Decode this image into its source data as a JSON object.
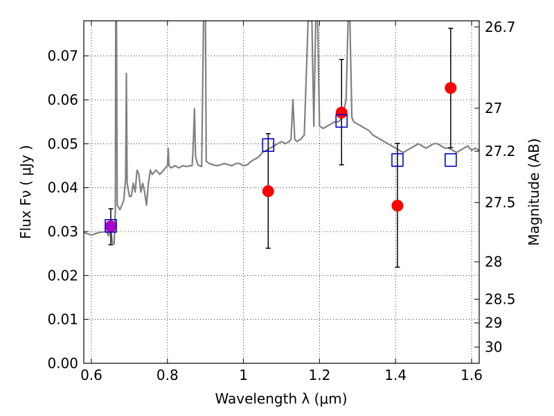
{
  "chart_data": {
    "type": "scatter",
    "title": "",
    "xlabel": "Wavelength  λ (μm)",
    "ylabel": "Flux  Fν  ( μJy )",
    "y2label": "Magnitude (AB)",
    "xlim": [
      0.58,
      1.62
    ],
    "ylim": [
      0.0,
      0.078
    ],
    "grid": true,
    "xticks": [
      0.6,
      0.8,
      1.0,
      1.2,
      1.4,
      1.6
    ],
    "xtick_labels": [
      "0.6",
      "0.8",
      "1",
      "1.2",
      "1.4",
      "1.6"
    ],
    "yticks": [
      0.0,
      0.01,
      0.02,
      0.03,
      0.04,
      0.05,
      0.06,
      0.07
    ],
    "ytick_labels": [
      "0.00",
      "0.01",
      "0.02",
      "0.03",
      "0.04",
      "0.05",
      "0.06",
      "0.07"
    ],
    "y2ticks": [
      {
        "label": "26.7",
        "flux": 0.0766
      },
      {
        "label": "27",
        "flux": 0.0581
      },
      {
        "label": "27.2",
        "flux": 0.0483
      },
      {
        "label": "27.5",
        "flux": 0.0366
      },
      {
        "label": "28",
        "flux": 0.0231
      },
      {
        "label": "28.5",
        "flux": 0.0146
      },
      {
        "label": "29",
        "flux": 0.0092
      },
      {
        "label": "30",
        "flux": 0.0037
      }
    ],
    "series": [
      {
        "kind": "model_spectrum",
        "color": "#808080",
        "points": [
          [
            0.58,
            0.0298
          ],
          [
            0.6,
            0.0292
          ],
          [
            0.62,
            0.0298
          ],
          [
            0.64,
            0.03
          ],
          [
            0.645,
            0.029
          ],
          [
            0.648,
            0.03
          ],
          [
            0.652,
            0.03
          ],
          [
            0.655,
            0.0275
          ],
          [
            0.66,
            0.0272
          ],
          [
            0.663,
            0.035
          ],
          [
            0.664,
            0.078
          ],
          [
            0.666,
            0.078
          ],
          [
            0.668,
            0.036
          ],
          [
            0.675,
            0.035
          ],
          [
            0.68,
            0.036
          ],
          [
            0.685,
            0.037
          ],
          [
            0.69,
            0.042
          ],
          [
            0.692,
            0.066
          ],
          [
            0.694,
            0.041
          ],
          [
            0.7,
            0.038
          ],
          [
            0.705,
            0.038
          ],
          [
            0.71,
            0.041
          ],
          [
            0.715,
            0.039
          ],
          [
            0.72,
            0.044
          ],
          [
            0.725,
            0.043
          ],
          [
            0.73,
            0.039
          ],
          [
            0.735,
            0.041
          ],
          [
            0.74,
            0.039
          ],
          [
            0.745,
            0.036
          ],
          [
            0.75,
            0.041
          ],
          [
            0.755,
            0.044
          ],
          [
            0.76,
            0.043
          ],
          [
            0.77,
            0.044
          ],
          [
            0.78,
            0.043
          ],
          [
            0.785,
            0.0435
          ],
          [
            0.79,
            0.044
          ],
          [
            0.8,
            0.045
          ],
          [
            0.802,
            0.049
          ],
          [
            0.804,
            0.045
          ],
          [
            0.81,
            0.0445
          ],
          [
            0.82,
            0.045
          ],
          [
            0.83,
            0.0445
          ],
          [
            0.84,
            0.045
          ],
          [
            0.85,
            0.0448
          ],
          [
            0.86,
            0.045
          ],
          [
            0.865,
            0.045
          ],
          [
            0.868,
            0.05
          ],
          [
            0.871,
            0.058
          ],
          [
            0.874,
            0.047
          ],
          [
            0.88,
            0.0452
          ],
          [
            0.89,
            0.0448
          ],
          [
            0.895,
            0.078
          ],
          [
            0.9,
            0.078
          ],
          [
            0.902,
            0.046
          ],
          [
            0.91,
            0.0455
          ],
          [
            0.92,
            0.0452
          ],
          [
            0.93,
            0.045
          ],
          [
            0.94,
            0.0452
          ],
          [
            0.95,
            0.0455
          ],
          [
            0.96,
            0.0452
          ],
          [
            0.97,
            0.045
          ],
          [
            0.98,
            0.0455
          ],
          [
            0.99,
            0.0455
          ],
          [
            1.0,
            0.045
          ],
          [
            1.01,
            0.0452
          ],
          [
            1.02,
            0.046
          ],
          [
            1.03,
            0.0465
          ],
          [
            1.04,
            0.047
          ],
          [
            1.05,
            0.048
          ],
          [
            1.06,
            0.0485
          ],
          [
            1.07,
            0.049
          ],
          [
            1.08,
            0.0495
          ],
          [
            1.09,
            0.05
          ],
          [
            1.1,
            0.0505
          ],
          [
            1.11,
            0.05
          ],
          [
            1.12,
            0.0505
          ],
          [
            1.125,
            0.051
          ],
          [
            1.13,
            0.06
          ],
          [
            1.135,
            0.051
          ],
          [
            1.14,
            0.0505
          ],
          [
            1.15,
            0.051
          ],
          [
            1.16,
            0.052
          ],
          [
            1.17,
            0.078
          ],
          [
            1.18,
            0.078
          ],
          [
            1.185,
            0.054
          ],
          [
            1.19,
            0.078
          ],
          [
            1.195,
            0.078
          ],
          [
            1.2,
            0.054
          ],
          [
            1.21,
            0.0535
          ],
          [
            1.22,
            0.054
          ],
          [
            1.23,
            0.0545
          ],
          [
            1.24,
            0.055
          ],
          [
            1.25,
            0.055
          ],
          [
            1.26,
            0.056
          ],
          [
            1.27,
            0.06
          ],
          [
            1.275,
            0.078
          ],
          [
            1.28,
            0.078
          ],
          [
            1.285,
            0.056
          ],
          [
            1.29,
            0.055
          ],
          [
            1.3,
            0.0545
          ],
          [
            1.31,
            0.054
          ],
          [
            1.32,
            0.0535
          ],
          [
            1.33,
            0.053
          ],
          [
            1.34,
            0.052
          ],
          [
            1.35,
            0.0515
          ],
          [
            1.36,
            0.051
          ],
          [
            1.37,
            0.0505
          ],
          [
            1.38,
            0.05
          ],
          [
            1.39,
            0.0495
          ],
          [
            1.4,
            0.049
          ],
          [
            1.41,
            0.0485
          ],
          [
            1.42,
            0.048
          ],
          [
            1.43,
            0.0485
          ],
          [
            1.44,
            0.049
          ],
          [
            1.45,
            0.0495
          ],
          [
            1.46,
            0.05
          ],
          [
            1.47,
            0.0495
          ],
          [
            1.48,
            0.049
          ],
          [
            1.49,
            0.0495
          ],
          [
            1.5,
            0.05
          ],
          [
            1.51,
            0.05
          ],
          [
            1.52,
            0.0495
          ],
          [
            1.53,
            0.049
          ],
          [
            1.54,
            0.049
          ],
          [
            1.55,
            0.0485
          ],
          [
            1.56,
            0.048
          ],
          [
            1.57,
            0.0485
          ],
          [
            1.58,
            0.049
          ],
          [
            1.59,
            0.0495
          ],
          [
            1.6,
            0.0485
          ],
          [
            1.61,
            0.049
          ],
          [
            1.62,
            0.0485
          ]
        ]
      },
      {
        "kind": "observed_photometry",
        "marker": "circle",
        "color": "#ff0000",
        "points": [
          {
            "x": 0.651,
            "y": 0.0312,
            "ylo": 0.027,
            "yhi": 0.0352
          },
          {
            "x": 1.065,
            "y": 0.0392,
            "ylo": 0.0262,
            "yhi": 0.0523
          },
          {
            "x": 1.258,
            "y": 0.0571,
            "ylo": 0.0452,
            "yhi": 0.0692
          },
          {
            "x": 1.405,
            "y": 0.0359,
            "ylo": 0.0219,
            "yhi": 0.0501
          },
          {
            "x": 1.545,
            "y": 0.0627,
            "ylo": 0.0491,
            "yhi": 0.0763
          }
        ]
      },
      {
        "kind": "model_photometry",
        "marker": "square",
        "color": "#0000cc",
        "points": [
          {
            "x": 0.651,
            "y": 0.0313
          },
          {
            "x": 1.065,
            "y": 0.0497
          },
          {
            "x": 1.258,
            "y": 0.0552
          },
          {
            "x": 1.405,
            "y": 0.0463
          },
          {
            "x": 1.545,
            "y": 0.0463
          }
        ]
      }
    ],
    "highlight": {
      "color": "#aa00cc",
      "x": 0.651,
      "y": 0.0312
    }
  }
}
